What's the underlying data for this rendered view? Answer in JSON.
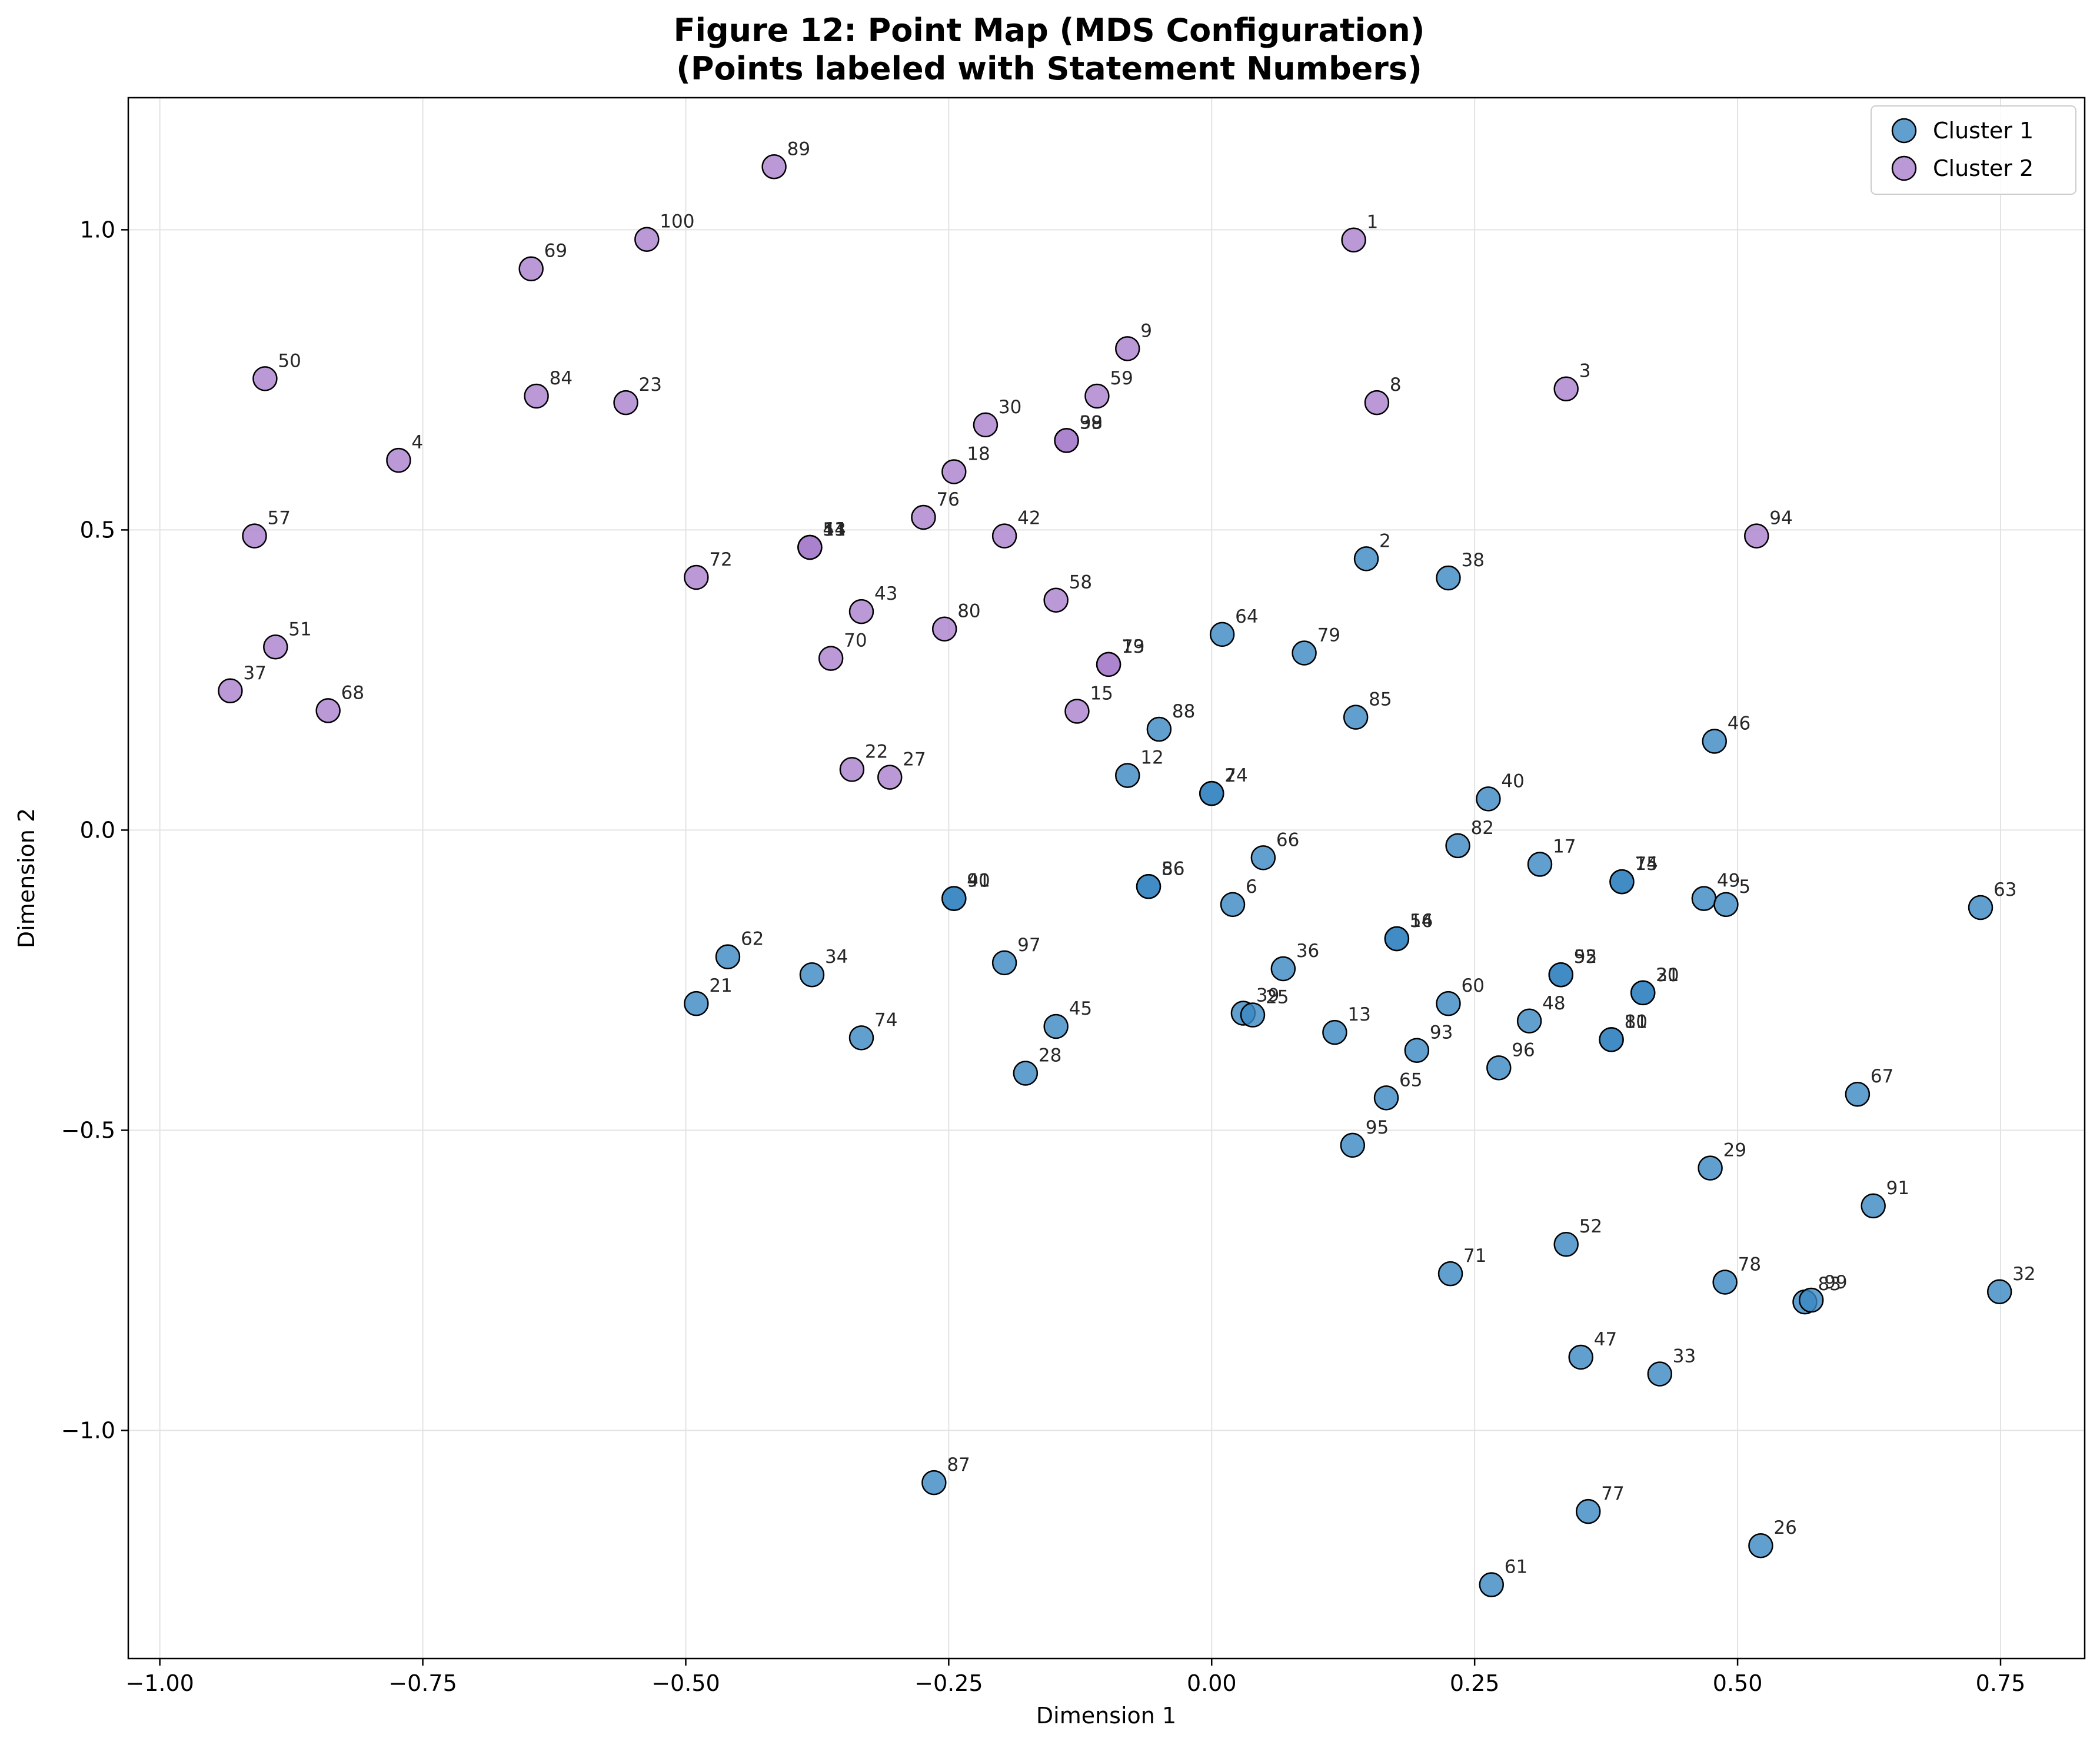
{
  "chart_data": {
    "type": "scatter",
    "title_line1": "Figure 12: Point Map (MDS Configuration)",
    "title_line2": "(Points labeled with Statement Numbers)",
    "xlabel": "Dimension 1",
    "ylabel": "Dimension 2",
    "xlim": [
      -1.03,
      0.83
    ],
    "ylim": [
      -1.38,
      1.22
    ],
    "xticks": [
      -1.0,
      -0.75,
      -0.5,
      -0.25,
      0.0,
      0.25,
      0.5,
      0.75
    ],
    "xtick_labels": [
      "−1.00",
      "−0.75",
      "−0.50",
      "−0.25",
      "0.00",
      "0.25",
      "0.50",
      "0.75"
    ],
    "yticks": [
      -1.0,
      -0.5,
      0.0,
      0.5,
      1.0
    ],
    "ytick_labels": [
      "−1.0",
      "−0.5",
      "0.0",
      "0.5",
      "1.0"
    ],
    "grid": true,
    "legend_position": "top-right",
    "series": [
      {
        "name": "Cluster 1",
        "color": "#3a87c2",
        "points": [
          {
            "label": "2",
            "x": 0.147,
            "y": 0.452
          },
          {
            "label": "38",
            "x": 0.225,
            "y": 0.42
          },
          {
            "label": "64",
            "x": 0.01,
            "y": 0.326
          },
          {
            "label": "79",
            "x": 0.088,
            "y": 0.295
          },
          {
            "label": "85",
            "x": 0.137,
            "y": 0.188
          },
          {
            "label": "46",
            "x": 0.478,
            "y": 0.148
          },
          {
            "label": "88",
            "x": -0.05,
            "y": 0.168
          },
          {
            "label": "12",
            "x": -0.08,
            "y": 0.091
          },
          {
            "label": "7",
            "x": 0.0,
            "y": 0.061
          },
          {
            "label": "24",
            "x": 0.0,
            "y": 0.061
          },
          {
            "label": "40",
            "x": 0.263,
            "y": 0.052
          },
          {
            "label": "82",
            "x": 0.234,
            "y": -0.026
          },
          {
            "label": "17",
            "x": 0.312,
            "y": -0.057
          },
          {
            "label": "66",
            "x": 0.049,
            "y": -0.046
          },
          {
            "label": "14",
            "x": 0.39,
            "y": -0.086
          },
          {
            "label": "75",
            "x": 0.39,
            "y": -0.086
          },
          {
            "label": "49",
            "x": 0.468,
            "y": -0.114
          },
          {
            "label": "5",
            "x": 0.489,
            "y": -0.124
          },
          {
            "label": "63",
            "x": 0.731,
            "y": -0.129
          },
          {
            "label": "6",
            "x": 0.02,
            "y": -0.124
          },
          {
            "label": "56",
            "x": -0.06,
            "y": -0.094
          },
          {
            "label": "86",
            "x": -0.06,
            "y": -0.094
          },
          {
            "label": "41",
            "x": -0.245,
            "y": -0.114
          },
          {
            "label": "90",
            "x": -0.245,
            "y": -0.114
          },
          {
            "label": "16",
            "x": 0.176,
            "y": -0.181
          },
          {
            "label": "54",
            "x": 0.176,
            "y": -0.181
          },
          {
            "label": "36",
            "x": 0.068,
            "y": -0.231
          },
          {
            "label": "55",
            "x": 0.332,
            "y": -0.241
          },
          {
            "label": "92",
            "x": 0.332,
            "y": -0.241
          },
          {
            "label": "20",
            "x": 0.41,
            "y": -0.271
          },
          {
            "label": "31",
            "x": 0.41,
            "y": -0.271
          },
          {
            "label": "60",
            "x": 0.225,
            "y": -0.289
          },
          {
            "label": "62",
            "x": -0.46,
            "y": -0.211
          },
          {
            "label": "34",
            "x": -0.38,
            "y": -0.241
          },
          {
            "label": "97",
            "x": -0.197,
            "y": -0.221
          },
          {
            "label": "21",
            "x": -0.49,
            "y": -0.289
          },
          {
            "label": "39",
            "x": 0.03,
            "y": -0.305
          },
          {
            "label": "25",
            "x": 0.039,
            "y": -0.308
          },
          {
            "label": "48",
            "x": 0.302,
            "y": -0.318
          },
          {
            "label": "13",
            "x": 0.117,
            "y": -0.337
          },
          {
            "label": "45",
            "x": -0.148,
            "y": -0.327
          },
          {
            "label": "74",
            "x": -0.333,
            "y": -0.346
          },
          {
            "label": "10",
            "x": 0.38,
            "y": -0.349
          },
          {
            "label": "81",
            "x": 0.38,
            "y": -0.349
          },
          {
            "label": "93",
            "x": 0.195,
            "y": -0.367
          },
          {
            "label": "96",
            "x": 0.273,
            "y": -0.396
          },
          {
            "label": "28",
            "x": -0.177,
            "y": -0.405
          },
          {
            "label": "65",
            "x": 0.166,
            "y": -0.446
          },
          {
            "label": "67",
            "x": 0.614,
            "y": -0.44
          },
          {
            "label": "95",
            "x": 0.134,
            "y": -0.525
          },
          {
            "label": "29",
            "x": 0.474,
            "y": -0.563
          },
          {
            "label": "91",
            "x": 0.629,
            "y": -0.626
          },
          {
            "label": "52",
            "x": 0.337,
            "y": -0.69
          },
          {
            "label": "71",
            "x": 0.227,
            "y": -0.739
          },
          {
            "label": "78",
            "x": 0.488,
            "y": -0.753
          },
          {
            "label": "83",
            "x": 0.564,
            "y": -0.786
          },
          {
            "label": "99",
            "x": 0.57,
            "y": -0.783
          },
          {
            "label": "32",
            "x": 0.749,
            "y": -0.769
          },
          {
            "label": "47",
            "x": 0.351,
            "y": -0.878
          },
          {
            "label": "33",
            "x": 0.426,
            "y": -0.906
          },
          {
            "label": "87",
            "x": -0.264,
            "y": -1.087
          },
          {
            "label": "77",
            "x": 0.358,
            "y": -1.135
          },
          {
            "label": "26",
            "x": 0.522,
            "y": -1.192
          },
          {
            "label": "61",
            "x": 0.266,
            "y": -1.257
          }
        ]
      },
      {
        "name": "Cluster 2",
        "color": "#a97fcc",
        "points": [
          {
            "label": "89",
            "x": -0.416,
            "y": 1.105
          },
          {
            "label": "100",
            "x": -0.537,
            "y": 0.984
          },
          {
            "label": "69",
            "x": -0.647,
            "y": 0.935
          },
          {
            "label": "1",
            "x": 0.135,
            "y": 0.983
          },
          {
            "label": "9",
            "x": -0.08,
            "y": 0.802
          },
          {
            "label": "50",
            "x": -0.9,
            "y": 0.752
          },
          {
            "label": "84",
            "x": -0.642,
            "y": 0.723
          },
          {
            "label": "23",
            "x": -0.557,
            "y": 0.712
          },
          {
            "label": "59",
            "x": -0.109,
            "y": 0.723
          },
          {
            "label": "8",
            "x": 0.157,
            "y": 0.712
          },
          {
            "label": "3",
            "x": 0.337,
            "y": 0.735
          },
          {
            "label": "30",
            "x": -0.215,
            "y": 0.675
          },
          {
            "label": "39",
            "x": -0.138,
            "y": 0.649
          },
          {
            "label": "98",
            "x": -0.138,
            "y": 0.649
          },
          {
            "label": "4",
            "x": -0.773,
            "y": 0.616
          },
          {
            "label": "18",
            "x": -0.245,
            "y": 0.597
          },
          {
            "label": "76",
            "x": -0.274,
            "y": 0.521
          },
          {
            "label": "57",
            "x": -0.91,
            "y": 0.49
          },
          {
            "label": "42",
            "x": -0.197,
            "y": 0.49
          },
          {
            "label": "94",
            "x": 0.518,
            "y": 0.49
          },
          {
            "label": "11",
            "x": -0.382,
            "y": 0.471
          },
          {
            "label": "44",
            "x": -0.382,
            "y": 0.471
          },
          {
            "label": "53",
            "x": -0.382,
            "y": 0.471
          },
          {
            "label": "72",
            "x": -0.49,
            "y": 0.421
          },
          {
            "label": "58",
            "x": -0.148,
            "y": 0.383
          },
          {
            "label": "43",
            "x": -0.333,
            "y": 0.364
          },
          {
            "label": "80",
            "x": -0.254,
            "y": 0.335
          },
          {
            "label": "51",
            "x": -0.89,
            "y": 0.305
          },
          {
            "label": "70",
            "x": -0.362,
            "y": 0.286
          },
          {
            "label": "19",
            "x": -0.098,
            "y": 0.276
          },
          {
            "label": "73",
            "x": -0.098,
            "y": 0.276
          },
          {
            "label": "37",
            "x": -0.933,
            "y": 0.232
          },
          {
            "label": "68",
            "x": -0.84,
            "y": 0.199
          },
          {
            "label": "15",
            "x": -0.128,
            "y": 0.198
          },
          {
            "label": "22",
            "x": -0.342,
            "y": 0.101
          },
          {
            "label": "27",
            "x": -0.306,
            "y": 0.088
          }
        ]
      }
    ]
  }
}
